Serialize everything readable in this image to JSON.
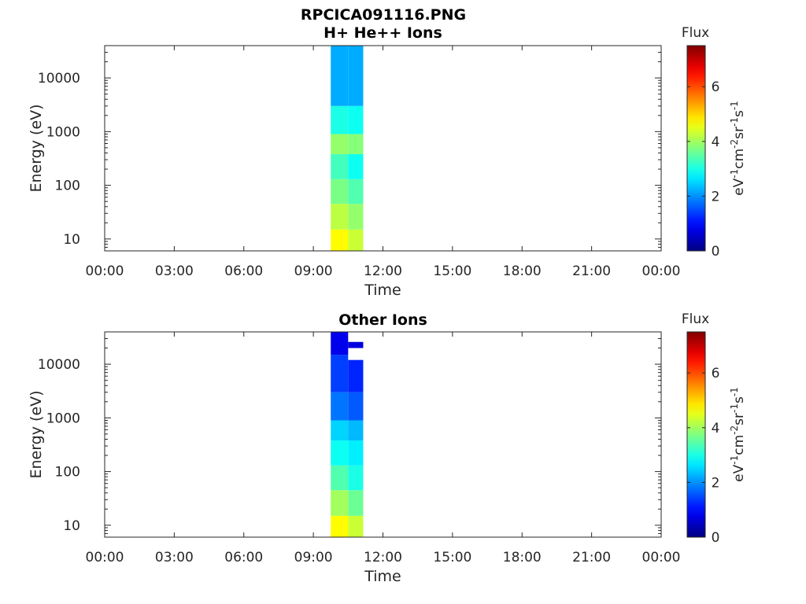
{
  "figure_title": "RPCICA091116.PNG",
  "colorbar": {
    "title": "Flux",
    "label_parts": [
      "eV",
      "-1",
      "cm",
      "-2",
      "sr",
      "-1",
      "s",
      "-1"
    ],
    "ticks": [
      "0",
      "2",
      "4",
      "6"
    ],
    "colormap": "jet"
  },
  "chart_data": [
    {
      "type": "heatmap",
      "title": "H+ He++ Ions",
      "xlabel": "Time",
      "ylabel": "Energy (eV)",
      "xticks": [
        "00:00",
        "03:00",
        "06:00",
        "09:00",
        "12:00",
        "15:00",
        "18:00",
        "21:00",
        "00:00"
      ],
      "xlim_hours": [
        0,
        24
      ],
      "yscale": "log",
      "yticks": [
        "10",
        "100",
        "1000",
        "10000"
      ],
      "ylim": [
        6,
        40000
      ],
      "clim": [
        0,
        7.5
      ],
      "colorbar_label": "Flux",
      "data_blocks": [
        {
          "t_start_hours": 9.75,
          "t_end_hours": 10.5,
          "bands": [
            {
              "e_min": 6,
              "e_max": 15,
              "flux": 4.7
            },
            {
              "e_min": 15,
              "e_max": 45,
              "flux": 4.2
            },
            {
              "e_min": 45,
              "e_max": 130,
              "flux": 3.7
            },
            {
              "e_min": 130,
              "e_max": 380,
              "flux": 3.3
            },
            {
              "e_min": 380,
              "e_max": 900,
              "flux": 3.9
            },
            {
              "e_min": 900,
              "e_max": 3000,
              "flux": 3.0
            },
            {
              "e_min": 3000,
              "e_max": 40000,
              "flux": 2.2
            }
          ]
        },
        {
          "t_start_hours": 10.5,
          "t_end_hours": 11.15,
          "bands": [
            {
              "e_min": 6,
              "e_max": 15,
              "flux": 4.3
            },
            {
              "e_min": 15,
              "e_max": 45,
              "flux": 3.9
            },
            {
              "e_min": 45,
              "e_max": 130,
              "flux": 3.4
            },
            {
              "e_min": 130,
              "e_max": 380,
              "flux": 2.9
            },
            {
              "e_min": 380,
              "e_max": 900,
              "flux": 3.8
            },
            {
              "e_min": 900,
              "e_max": 3000,
              "flux": 2.9
            },
            {
              "e_min": 3000,
              "e_max": 40000,
              "flux": 2.2
            }
          ]
        }
      ]
    },
    {
      "type": "heatmap",
      "title": "Other Ions",
      "xlabel": "Time",
      "ylabel": "Energy (eV)",
      "xticks": [
        "00:00",
        "03:00",
        "06:00",
        "09:00",
        "12:00",
        "15:00",
        "18:00",
        "21:00",
        "00:00"
      ],
      "xlim_hours": [
        0,
        24
      ],
      "yscale": "log",
      "yticks": [
        "10",
        "100",
        "1000",
        "10000"
      ],
      "ylim": [
        6,
        40000
      ],
      "clim": [
        0,
        7.5
      ],
      "colorbar_label": "Flux",
      "data_blocks": [
        {
          "t_start_hours": 9.75,
          "t_end_hours": 10.5,
          "bands": [
            {
              "e_min": 6,
              "e_max": 15,
              "flux": 4.7
            },
            {
              "e_min": 15,
              "e_max": 45,
              "flux": 4.0
            },
            {
              "e_min": 45,
              "e_max": 130,
              "flux": 3.4
            },
            {
              "e_min": 130,
              "e_max": 380,
              "flux": 2.9
            },
            {
              "e_min": 380,
              "e_max": 900,
              "flux": 2.5
            },
            {
              "e_min": 900,
              "e_max": 3000,
              "flux": 1.8
            },
            {
              "e_min": 3000,
              "e_max": 15000,
              "flux": 1.4
            },
            {
              "e_min": 15000,
              "e_max": 40000,
              "flux": 0.8
            }
          ]
        },
        {
          "t_start_hours": 10.5,
          "t_end_hours": 11.15,
          "bands": [
            {
              "e_min": 6,
              "e_max": 15,
              "flux": 4.3
            },
            {
              "e_min": 15,
              "e_max": 45,
              "flux": 3.6
            },
            {
              "e_min": 45,
              "e_max": 130,
              "flux": 3.0
            },
            {
              "e_min": 130,
              "e_max": 380,
              "flux": 2.7
            },
            {
              "e_min": 380,
              "e_max": 900,
              "flux": 2.3
            },
            {
              "e_min": 900,
              "e_max": 3000,
              "flux": 1.6
            },
            {
              "e_min": 3000,
              "e_max": 12000,
              "flux": 1.2
            },
            {
              "e_min": 20000,
              "e_max": 26000,
              "flux": 0.7
            }
          ]
        }
      ]
    }
  ]
}
